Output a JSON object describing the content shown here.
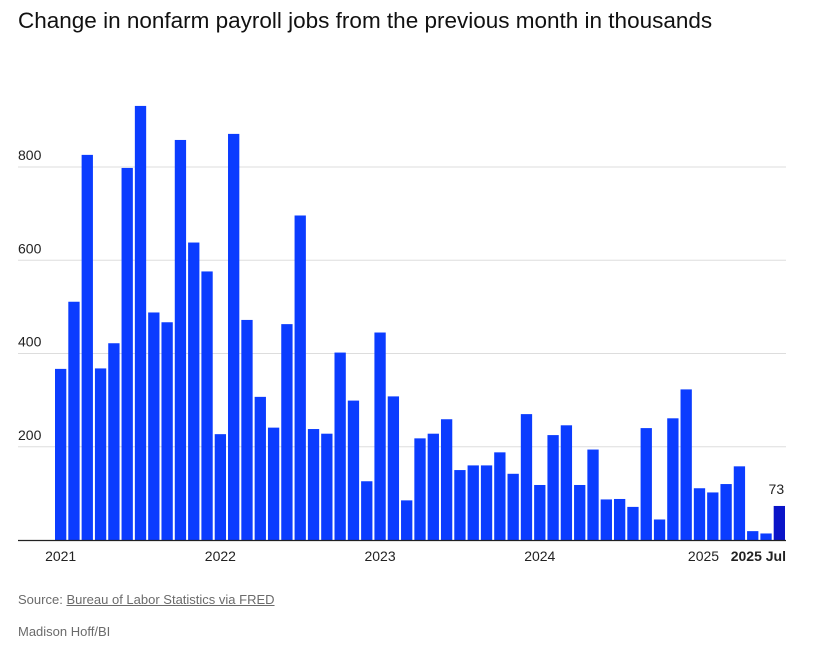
{
  "page": {
    "title": "Change in nonfarm payroll jobs from the previous month in thousands",
    "source_prefix": "Source:",
    "source_link": "Bureau of Labor Statistics via FRED",
    "credit": "Madison Hoff/BI"
  },
  "chart_data": {
    "type": "bar",
    "title": "Change in nonfarm payroll jobs from the previous month in thousands",
    "xlabel": "",
    "ylabel": "",
    "ylim": [
      0,
      930
    ],
    "y_ticks": [
      200,
      400,
      600,
      800
    ],
    "x_tick_labels": [
      {
        "label": "2021",
        "index": 0,
        "bold": false
      },
      {
        "label": "2022",
        "index": 12,
        "bold": false
      },
      {
        "label": "2023",
        "index": 24,
        "bold": false
      },
      {
        "label": "2024",
        "index": 36,
        "bold": false
      },
      {
        "label": "2025",
        "index": 48,
        "bold": false
      },
      {
        "label": "2025 Jul",
        "index": 54,
        "bold": true
      }
    ],
    "grid": true,
    "bar_color": "#0b3cff",
    "highlight_color": "#0a14c8",
    "highlight_index": 54,
    "annotation": {
      "index": 54,
      "text": "73"
    },
    "categories": [
      "2021-01",
      "2021-02",
      "2021-03",
      "2021-04",
      "2021-05",
      "2021-06",
      "2021-07",
      "2021-08",
      "2021-09",
      "2021-10",
      "2021-11",
      "2021-12",
      "2022-01",
      "2022-02",
      "2022-03",
      "2022-04",
      "2022-05",
      "2022-06",
      "2022-07",
      "2022-08",
      "2022-09",
      "2022-10",
      "2022-11",
      "2022-12",
      "2023-01",
      "2023-02",
      "2023-03",
      "2023-04",
      "2023-05",
      "2023-06",
      "2023-07",
      "2023-08",
      "2023-09",
      "2023-10",
      "2023-11",
      "2023-12",
      "2024-01",
      "2024-02",
      "2024-03",
      "2024-04",
      "2024-05",
      "2024-06",
      "2024-07",
      "2024-08",
      "2024-09",
      "2024-10",
      "2024-11",
      "2024-12",
      "2025-01",
      "2025-02",
      "2025-03",
      "2025-04",
      "2025-05",
      "2025-06",
      "2025-07"
    ],
    "values": [
      367,
      511,
      826,
      368,
      422,
      798,
      931,
      488,
      467,
      858,
      638,
      576,
      227,
      871,
      472,
      307,
      241,
      463,
      696,
      238,
      228,
      402,
      299,
      126,
      445,
      308,
      85,
      218,
      228,
      259,
      150,
      160,
      160,
      188,
      142,
      270,
      118,
      225,
      246,
      118,
      194,
      87,
      88,
      71,
      240,
      44,
      261,
      323,
      111,
      102,
      120,
      158,
      19,
      14,
      73
    ]
  }
}
